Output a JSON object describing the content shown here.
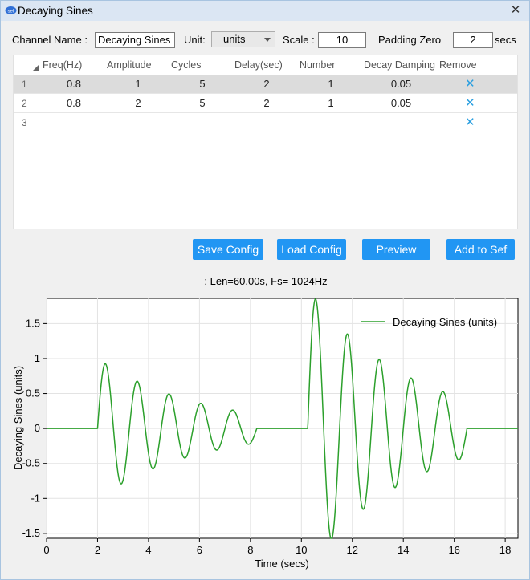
{
  "window": {
    "title": "Decaying Sines",
    "icon": "sef-app-icon",
    "close_glyph": "✕"
  },
  "form": {
    "channel_name_label": "Channel Name :",
    "channel_name_value": "Decaying Sines",
    "unit_label": "Unit:",
    "unit_value": "units",
    "scale_label": "Scale :",
    "scale_value": "10",
    "padding_label": "Padding Zero",
    "padding_value": "2",
    "padding_suffix": "secs"
  },
  "table": {
    "columns": [
      "Freq(Hz)",
      "Amplitude",
      "Cycles",
      "Delay(sec)",
      "Number",
      "Decay Damping",
      "Remove"
    ],
    "rows": [
      {
        "num": "1",
        "freq": "0.8",
        "amp": "1",
        "cycles": "5",
        "delay": "2",
        "number": "1",
        "damping": "0.05",
        "remove": "✕",
        "selected": true
      },
      {
        "num": "2",
        "freq": "0.8",
        "amp": "2",
        "cycles": "5",
        "delay": "2",
        "number": "1",
        "damping": "0.05",
        "remove": "✕",
        "selected": false
      },
      {
        "num": "3",
        "freq": "",
        "amp": "",
        "cycles": "",
        "delay": "",
        "number": "",
        "damping": "",
        "remove": "✕",
        "selected": false
      }
    ]
  },
  "buttons": {
    "save": "Save Config",
    "load": "Load Config",
    "preview": "Preview",
    "add": "Add to Sef"
  },
  "info_text": ": Len=60.00s, Fs= 1024Hz",
  "accent_color": "#2196f3",
  "chart_data": {
    "type": "line",
    "title": "",
    "xlabel": "Time (secs)",
    "ylabel": "Decaying Sines (units)",
    "xlim": [
      0,
      18.5
    ],
    "ylim": [
      -1.57,
      1.86
    ],
    "xticks": [
      0,
      2,
      4,
      6,
      8,
      10,
      12,
      14,
      16,
      18
    ],
    "yticks": [
      -1.5,
      -1,
      -0.5,
      0,
      0.5,
      1,
      1.5
    ],
    "ytick_labels": [
      "-1.5",
      "-1",
      "-0.5",
      "0",
      "0.5",
      "1",
      "1.5"
    ],
    "grid": true,
    "legend_position": "top-right",
    "series": [
      {
        "name": "Decaying Sines (units)",
        "color": "#2ca02c",
        "segments": [
          {
            "start": 2.0,
            "end": 8.25,
            "amplitude": 1.0,
            "freq": 0.8,
            "damping": 0.05
          },
          {
            "start": 10.25,
            "end": 16.5,
            "amplitude": 2.0,
            "freq": 0.8,
            "damping": 0.05
          }
        ]
      }
    ]
  }
}
